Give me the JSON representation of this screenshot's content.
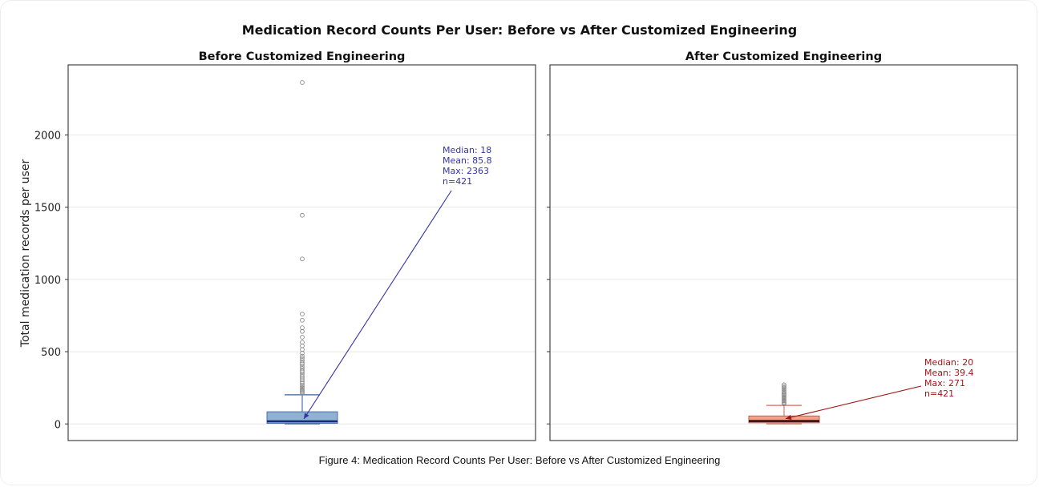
{
  "chart_data": {
    "type": "box",
    "title": "Medication Record Counts Per User: Before vs After Customized Engineering",
    "ylabel": "Total medication records per user",
    "ylim": [
      -115,
      2485
    ],
    "yticks": [
      0,
      500,
      1000,
      1500,
      2000
    ],
    "grid": "horizontal",
    "panels": [
      {
        "title": "Before Customized Engineering",
        "color": "#8fb2d3",
        "edge_color": "#4c6fa8",
        "median_color": "#142a7a",
        "whisker_color": "#5b7ab0",
        "annotation_color": "#3535a8",
        "stats": {
          "min": 0,
          "q1": 4,
          "median": 18,
          "q3": 84,
          "whisker_high": 202,
          "mean": 85.8,
          "max": 2363,
          "n": 421
        },
        "outliers": [
          2363,
          1444,
          1142,
          760,
          718,
          666,
          640,
          600,
          565,
          540,
          515,
          490,
          470,
          455,
          440,
          425,
          415,
          400,
          385,
          370,
          360,
          345,
          330,
          318,
          305,
          292,
          280,
          268,
          258,
          248,
          238,
          228,
          220,
          212
        ],
        "annotation_lines": [
          "Median: 18",
          "Mean: 85.8",
          "Max: 2363",
          "n=421"
        ]
      },
      {
        "title": "After Customized Engineering",
        "color": "#f7a18a",
        "edge_color": "#c25a4a",
        "median_color": "#2a0a0a",
        "whisker_color": "#e0826e",
        "annotation_color": "#a01818",
        "stats": {
          "min": 0,
          "q1": 8,
          "median": 20,
          "q3": 55,
          "whisker_high": 128,
          "mean": 39.4,
          "max": 271,
          "n": 421
        },
        "outliers": [
          271,
          262,
          252,
          242,
          232,
          222,
          212,
          205,
          198,
          190,
          182,
          175,
          168,
          160,
          152,
          145,
          138
        ],
        "annotation_lines": [
          "Median: 20",
          "Mean: 39.4",
          "Max: 271",
          "n=421"
        ]
      }
    ]
  },
  "caption": "Figure 4: Medication Record Counts Per User: Before vs After Customized Engineering"
}
